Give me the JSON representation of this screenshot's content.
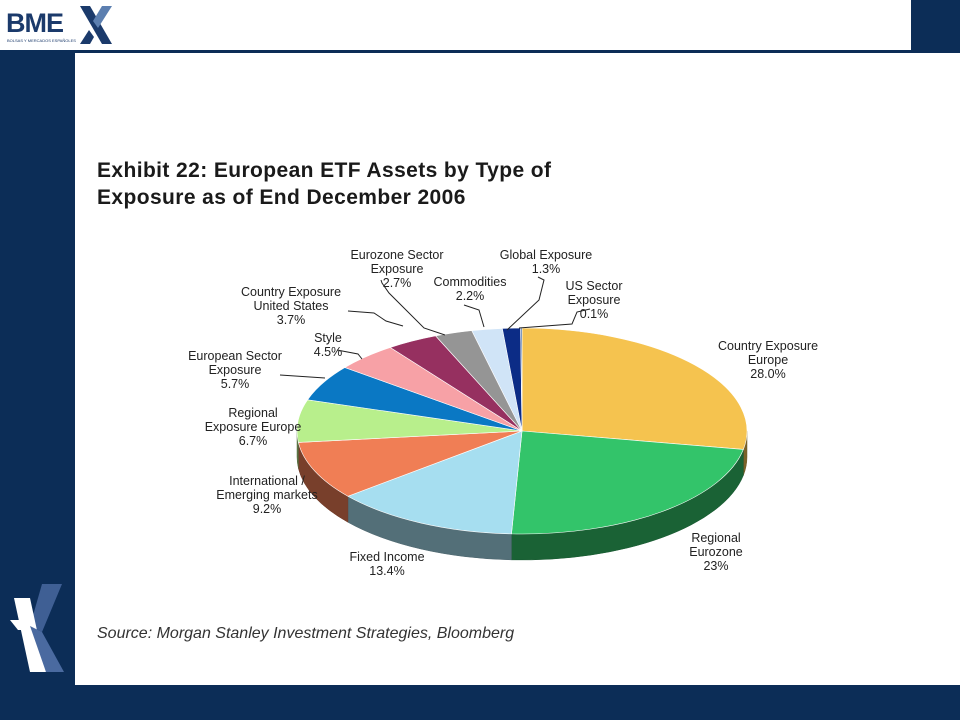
{
  "brand": {
    "logo_text": "BME",
    "logo_subtext": "BOLSAS Y MERCADOS ESPAÑOLES",
    "colors": {
      "navy": "#0c2d57",
      "logo_blue": "#1b3a6b"
    }
  },
  "chart_data": {
    "type": "pie",
    "title": "Exhibit 22: European ETF Assets by Type of Exposure as of End December 2006",
    "title_lines": [
      "Exhibit 22: European ETF Assets by Type of",
      "Exposure as of End December 2006"
    ],
    "source": "Source: Morgan Stanley Investment Strategies, Bloomberg",
    "legend": "none",
    "slices": [
      {
        "label": "Country Exposure Europe",
        "value": 28.0,
        "value_label": "28.0%",
        "color": "#f5c34f"
      },
      {
        "label": "Regional Eurozone",
        "value": 23,
        "value_label": "23%",
        "color": "#33c46a"
      },
      {
        "label": "Fixed Income",
        "value": 13.4,
        "value_label": "13.4%",
        "color": "#a6def0"
      },
      {
        "label": "International / Emerging markets",
        "value": 9.2,
        "value_label": "9.2%",
        "color": "#f07e55"
      },
      {
        "label": "Regional Exposure Europe",
        "value": 6.7,
        "value_label": "6.7%",
        "color": "#b8ef8c"
      },
      {
        "label": "European Sector Exposure",
        "value": 5.7,
        "value_label": "5.7%",
        "color": "#0a78c4"
      },
      {
        "label": "Style",
        "value": 4.5,
        "value_label": "4.5%",
        "color": "#f7a1a6"
      },
      {
        "label": "Country Exposure United States",
        "value": 3.7,
        "value_label": "3.7%",
        "color": "#963060"
      },
      {
        "label": "Eurozone Sector Exposure",
        "value": 2.7,
        "value_label": "2.7%",
        "color": "#959595"
      },
      {
        "label": "Commodities",
        "value": 2.2,
        "value_label": "2.2%",
        "color": "#d0e4f7"
      },
      {
        "label": "Global Exposure",
        "value": 1.3,
        "value_label": "1.3%",
        "color": "#0c2c86"
      },
      {
        "label": "US Sector Exposure",
        "value": 0.1,
        "value_label": "0.1%",
        "color": "#4a6fa5"
      }
    ]
  }
}
